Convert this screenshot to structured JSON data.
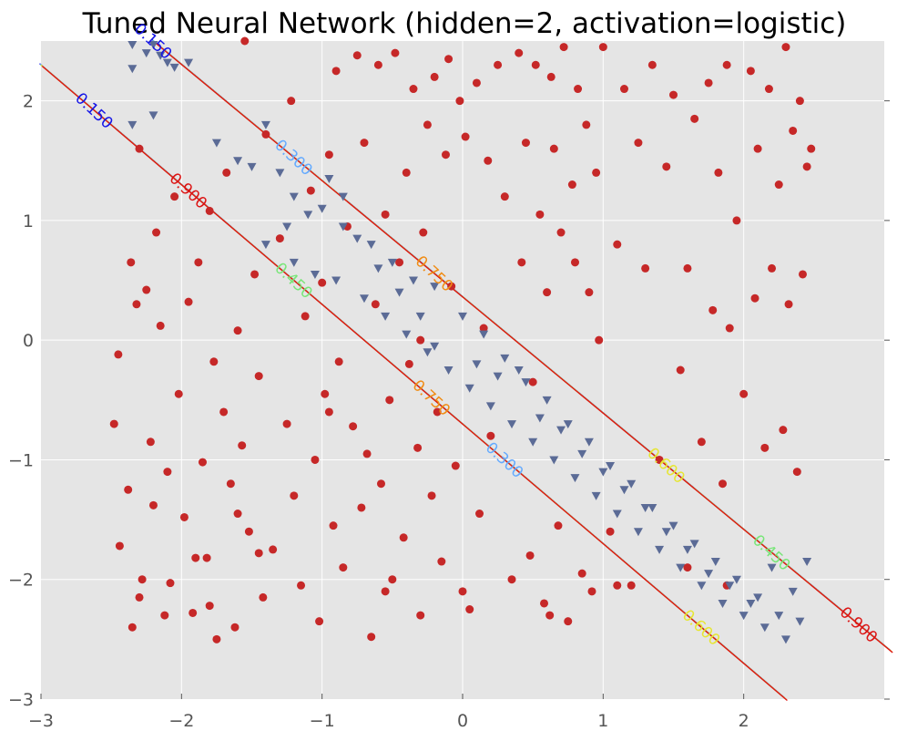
{
  "chart_data": {
    "type": "scatter",
    "title": "Tuned Neural Network (hidden=2, activation=logistic)",
    "xlabel": "",
    "ylabel": "",
    "xlim": [
      -3,
      3
    ],
    "ylim": [
      -3,
      2.5
    ],
    "x_ticks": [
      "−3",
      "−2",
      "−1",
      "0",
      "1",
      "2"
    ],
    "y_ticks": [
      "2",
      "1",
      "0",
      "−1",
      "−2",
      "−3"
    ],
    "grid": true,
    "background": "#e5e5e5",
    "colors": {
      "class_circle": "#c62828",
      "class_triangle": "#5b6b96",
      "c015": "#1414e6",
      "c030": "#64aaff",
      "c045": "#78e678",
      "c060": "#e6e632",
      "c075": "#f08c14",
      "c090": "#dc1414"
    },
    "series": [
      {
        "marker": "circle",
        "points": [
          [
            -2.45,
            -0.12
          ],
          [
            -2.48,
            -0.7
          ],
          [
            -2.44,
            -1.72
          ],
          [
            -2.38,
            -1.25
          ],
          [
            -2.36,
            0.65
          ],
          [
            -2.32,
            0.3
          ],
          [
            -2.3,
            1.6
          ],
          [
            -2.25,
            0.42
          ],
          [
            -2.22,
            -0.85
          ],
          [
            -2.2,
            -1.38
          ],
          [
            -2.18,
            0.9
          ],
          [
            -2.15,
            0.12
          ],
          [
            -2.12,
            -2.3
          ],
          [
            -2.1,
            -1.1
          ],
          [
            -2.08,
            -2.03
          ],
          [
            -2.05,
            1.2
          ],
          [
            -2.02,
            -0.45
          ],
          [
            -1.98,
            -1.48
          ],
          [
            -1.95,
            0.32
          ],
          [
            -1.92,
            -2.28
          ],
          [
            -1.88,
            0.65
          ],
          [
            -1.85,
            -1.02
          ],
          [
            -1.82,
            -1.82
          ],
          [
            -1.8,
            1.08
          ],
          [
            -1.77,
            -0.18
          ],
          [
            -1.75,
            -2.5
          ],
          [
            -1.7,
            -0.6
          ],
          [
            -1.68,
            1.4
          ],
          [
            -1.65,
            -1.2
          ],
          [
            -1.62,
            -2.4
          ],
          [
            -1.6,
            0.08
          ],
          [
            -1.57,
            -0.88
          ],
          [
            -1.55,
            2.5
          ],
          [
            -1.52,
            -1.6
          ],
          [
            -1.48,
            0.55
          ],
          [
            -1.45,
            -0.3
          ],
          [
            -1.42,
            -2.15
          ],
          [
            -1.4,
            1.72
          ],
          [
            -1.35,
            -1.75
          ],
          [
            -1.3,
            0.85
          ],
          [
            -1.25,
            -0.7
          ],
          [
            -1.22,
            2.0
          ],
          [
            -1.2,
            -1.3
          ],
          [
            -1.15,
            -2.05
          ],
          [
            -1.12,
            0.2
          ],
          [
            -1.08,
            1.25
          ],
          [
            -1.05,
            -1.0
          ],
          [
            -1.02,
            -2.35
          ],
          [
            -1.0,
            0.48
          ],
          [
            -0.98,
            -0.45
          ],
          [
            -0.95,
            1.55
          ],
          [
            -0.92,
            -1.55
          ],
          [
            -0.9,
            2.25
          ],
          [
            -0.88,
            -0.18
          ],
          [
            -0.85,
            -1.9
          ],
          [
            -0.82,
            0.95
          ],
          [
            -0.78,
            -0.72
          ],
          [
            -0.75,
            2.38
          ],
          [
            -0.72,
            -1.4
          ],
          [
            -0.7,
            1.65
          ],
          [
            -0.68,
            -0.95
          ],
          [
            -0.65,
            -2.48
          ],
          [
            -0.62,
            0.3
          ],
          [
            -0.6,
            2.3
          ],
          [
            -0.58,
            -1.2
          ],
          [
            -0.55,
            1.05
          ],
          [
            -0.52,
            -0.5
          ],
          [
            -0.5,
            -2.0
          ],
          [
            -0.48,
            2.4
          ],
          [
            -0.45,
            0.65
          ],
          [
            -0.42,
            -1.65
          ],
          [
            -0.4,
            1.4
          ],
          [
            -0.38,
            -0.2
          ],
          [
            -0.35,
            2.1
          ],
          [
            -0.32,
            -0.9
          ],
          [
            -0.3,
            -2.3
          ],
          [
            -0.28,
            0.9
          ],
          [
            -0.25,
            1.8
          ],
          [
            -0.22,
            -1.3
          ],
          [
            -0.2,
            2.2
          ],
          [
            -0.18,
            -0.6
          ],
          [
            -0.15,
            -1.85
          ],
          [
            -0.12,
            1.55
          ],
          [
            -0.1,
            2.35
          ],
          [
            -0.08,
            0.45
          ],
          [
            -0.05,
            -1.05
          ],
          [
            -0.02,
            2.0
          ],
          [
            0.0,
            -2.1
          ],
          [
            0.02,
            1.7
          ],
          [
            0.05,
            -2.25
          ],
          [
            0.1,
            2.15
          ],
          [
            0.12,
            -1.45
          ],
          [
            0.18,
            1.5
          ],
          [
            0.2,
            -0.8
          ],
          [
            0.25,
            2.3
          ],
          [
            0.3,
            1.2
          ],
          [
            0.35,
            -2.0
          ],
          [
            0.4,
            2.4
          ],
          [
            0.42,
            0.65
          ],
          [
            0.45,
            1.65
          ],
          [
            0.48,
            -1.8
          ],
          [
            0.52,
            2.3
          ],
          [
            0.55,
            1.05
          ],
          [
            0.58,
            -2.2
          ],
          [
            0.6,
            0.4
          ],
          [
            0.63,
            2.2
          ],
          [
            0.65,
            1.6
          ],
          [
            0.68,
            -1.55
          ],
          [
            0.7,
            0.9
          ],
          [
            0.72,
            2.45
          ],
          [
            0.75,
            -2.35
          ],
          [
            0.78,
            1.3
          ],
          [
            0.8,
            0.65
          ],
          [
            0.82,
            2.1
          ],
          [
            0.85,
            -1.95
          ],
          [
            0.88,
            1.8
          ],
          [
            0.9,
            0.4
          ],
          [
            0.92,
            -2.1
          ],
          [
            0.95,
            1.4
          ],
          [
            0.97,
            0.0
          ],
          [
            1.0,
            2.45
          ],
          [
            1.05,
            -1.6
          ],
          [
            1.1,
            0.8
          ],
          [
            1.15,
            2.1
          ],
          [
            1.2,
            -2.05
          ],
          [
            1.25,
            1.65
          ],
          [
            1.3,
            0.6
          ],
          [
            1.35,
            2.3
          ],
          [
            1.4,
            -1.0
          ],
          [
            1.45,
            1.45
          ],
          [
            1.5,
            2.05
          ],
          [
            1.55,
            -0.25
          ],
          [
            1.6,
            0.6
          ],
          [
            1.65,
            1.85
          ],
          [
            1.7,
            -0.85
          ],
          [
            1.75,
            2.15
          ],
          [
            1.78,
            0.25
          ],
          [
            1.82,
            1.4
          ],
          [
            1.85,
            -1.2
          ],
          [
            1.88,
            2.3
          ],
          [
            1.9,
            0.1
          ],
          [
            1.95,
            1.0
          ],
          [
            2.0,
            -0.45
          ],
          [
            2.05,
            2.25
          ],
          [
            2.08,
            0.35
          ],
          [
            2.1,
            1.6
          ],
          [
            2.15,
            -0.9
          ],
          [
            2.18,
            2.1
          ],
          [
            2.2,
            0.6
          ],
          [
            2.25,
            1.3
          ],
          [
            2.28,
            -0.75
          ],
          [
            2.3,
            2.45
          ],
          [
            2.32,
            0.3
          ],
          [
            2.35,
            1.75
          ],
          [
            2.38,
            -1.1
          ],
          [
            2.4,
            2.0
          ],
          [
            2.42,
            0.55
          ],
          [
            2.45,
            1.45
          ],
          [
            2.48,
            1.6
          ],
          [
            -2.35,
            -2.4
          ],
          [
            -2.28,
            -2.0
          ],
          [
            -0.3,
            0.0
          ],
          [
            0.15,
            0.1
          ],
          [
            0.5,
            -0.35
          ],
          [
            -1.6,
            -1.45
          ],
          [
            -1.9,
            -1.82
          ],
          [
            1.6,
            -1.9
          ],
          [
            1.88,
            -2.05
          ],
          [
            1.1,
            -2.05
          ],
          [
            0.62,
            -2.3
          ],
          [
            -0.95,
            -0.6
          ],
          [
            -1.8,
            -2.22
          ],
          [
            -1.45,
            -1.78
          ],
          [
            -2.3,
            -2.15
          ],
          [
            -0.55,
            -2.1
          ]
        ]
      },
      {
        "marker": "triangle",
        "points": [
          [
            -2.35,
            2.47
          ],
          [
            -2.35,
            2.27
          ],
          [
            -2.35,
            1.8
          ],
          [
            -2.2,
            2.47
          ],
          [
            -2.15,
            2.38
          ],
          [
            -2.1,
            2.32
          ],
          [
            -2.2,
            1.88
          ],
          [
            -2.05,
            2.28
          ],
          [
            -1.95,
            2.32
          ],
          [
            -1.4,
            1.8
          ],
          [
            -1.5,
            1.45
          ],
          [
            -1.3,
            1.4
          ],
          [
            -1.2,
            1.2
          ],
          [
            -1.1,
            1.05
          ],
          [
            -0.95,
            1.35
          ],
          [
            -0.85,
            1.2
          ],
          [
            -0.75,
            0.85
          ],
          [
            -0.6,
            0.6
          ],
          [
            -0.45,
            0.4
          ],
          [
            -0.3,
            0.2
          ],
          [
            -1.4,
            0.8
          ],
          [
            -1.2,
            0.65
          ],
          [
            -1.05,
            0.55
          ],
          [
            -0.9,
            0.5
          ],
          [
            -0.7,
            0.35
          ],
          [
            -0.55,
            0.2
          ],
          [
            -0.4,
            0.05
          ],
          [
            -0.25,
            -0.1
          ],
          [
            -0.1,
            -0.25
          ],
          [
            0.05,
            -0.4
          ],
          [
            0.2,
            -0.55
          ],
          [
            0.35,
            -0.7
          ],
          [
            0.5,
            -0.85
          ],
          [
            0.65,
            -1.0
          ],
          [
            0.8,
            -1.15
          ],
          [
            0.95,
            -1.3
          ],
          [
            1.1,
            -1.45
          ],
          [
            1.25,
            -1.6
          ],
          [
            1.4,
            -1.75
          ],
          [
            1.55,
            -1.9
          ],
          [
            1.7,
            -2.05
          ],
          [
            1.85,
            -2.2
          ],
          [
            2.0,
            -2.3
          ],
          [
            2.15,
            -2.4
          ],
          [
            2.3,
            -2.5
          ],
          [
            -0.2,
            0.45
          ],
          [
            0.0,
            0.2
          ],
          [
            0.15,
            0.05
          ],
          [
            0.3,
            -0.15
          ],
          [
            0.45,
            -0.35
          ],
          [
            0.6,
            -0.5
          ],
          [
            0.75,
            -0.7
          ],
          [
            0.9,
            -0.85
          ],
          [
            1.05,
            -1.05
          ],
          [
            1.2,
            -1.2
          ],
          [
            1.35,
            -1.4
          ],
          [
            1.5,
            -1.55
          ],
          [
            1.65,
            -1.7
          ],
          [
            1.8,
            -1.85
          ],
          [
            1.95,
            -2.0
          ],
          [
            2.1,
            -2.15
          ],
          [
            2.25,
            -2.3
          ],
          [
            2.35,
            -2.1
          ],
          [
            2.2,
            -1.9
          ],
          [
            0.4,
            -0.25
          ],
          [
            -0.65,
            0.8
          ],
          [
            -0.85,
            0.95
          ],
          [
            -1.0,
            1.1
          ],
          [
            -0.5,
            0.65
          ],
          [
            -0.35,
            0.5
          ],
          [
            0.25,
            -0.3
          ],
          [
            0.55,
            -0.65
          ],
          [
            0.85,
            -0.95
          ],
          [
            1.15,
            -1.25
          ],
          [
            1.45,
            -1.6
          ],
          [
            1.75,
            -1.95
          ],
          [
            2.05,
            -2.2
          ],
          [
            -1.6,
            1.5
          ],
          [
            -1.75,
            1.65
          ],
          [
            -1.25,
            0.95
          ],
          [
            -2.25,
            2.4
          ],
          [
            -0.2,
            -0.05
          ],
          [
            0.1,
            -0.2
          ],
          [
            0.7,
            -0.75
          ],
          [
            1.0,
            -1.1
          ],
          [
            1.3,
            -1.4
          ],
          [
            1.6,
            -1.75
          ],
          [
            1.9,
            -2.05
          ],
          [
            2.4,
            -2.35
          ],
          [
            2.45,
            -1.85
          ]
        ]
      }
    ],
    "contours": [
      {
        "label": "0.150",
        "color_key": "c015",
        "x0": -2.62,
        "line": 1
      },
      {
        "label": "0.300",
        "color_key": "c030",
        "x0": 0.3,
        "line": 1
      },
      {
        "label": "0.450",
        "color_key": "c045",
        "x0": -1.2,
        "line": 1
      },
      {
        "label": "0.600",
        "color_key": "c060",
        "x0": 1.7,
        "line": 1
      },
      {
        "label": "0.750",
        "color_key": "c075",
        "x0": -0.22,
        "line": 1
      },
      {
        "label": "0.900",
        "color_key": "c090",
        "x0": -1.95,
        "line": 1
      },
      {
        "label": "0.150",
        "color_key": "c015",
        "x0": -2.2,
        "line": 2
      },
      {
        "label": "0.300",
        "color_key": "c030",
        "x0": -1.2,
        "line": 2
      },
      {
        "label": "0.450",
        "color_key": "c045",
        "x0": 2.2,
        "line": 2
      },
      {
        "label": "0.600",
        "color_key": "c060",
        "x0": 1.45,
        "line": 2
      },
      {
        "label": "0.750",
        "color_key": "c075",
        "x0": -0.2,
        "line": 2
      },
      {
        "label": "0.900",
        "color_key": "c090",
        "x0": 2.82,
        "line": 2
      }
    ]
  }
}
